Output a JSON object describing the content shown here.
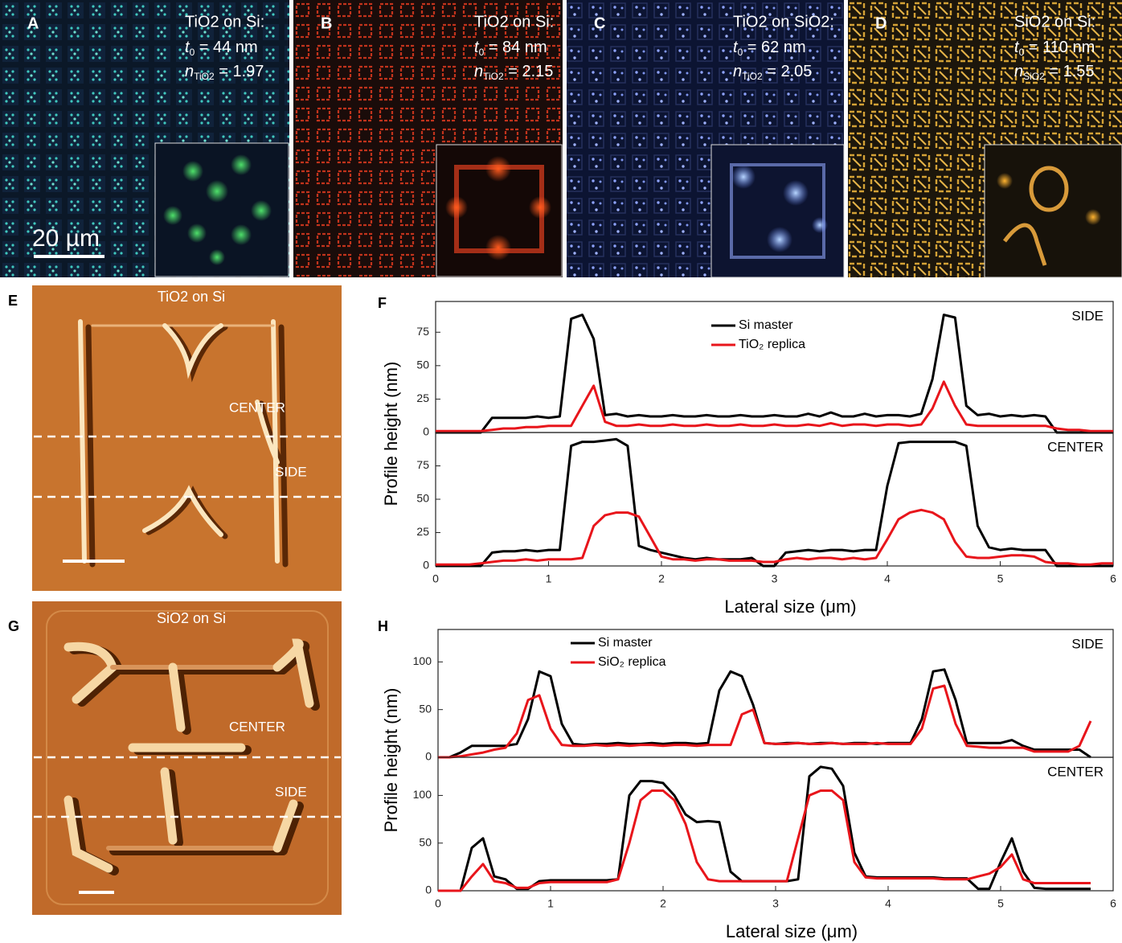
{
  "panels": [
    {
      "letter": "A",
      "title": "TiO2 on Si:",
      "lines": [
        {
          "sym": "t",
          "sub": "0",
          "text": " = 44 nm"
        },
        {
          "sym": "n",
          "sub": "TiO2",
          "text": " = 1.97"
        }
      ],
      "scale": "20 µm"
    },
    {
      "letter": "B",
      "title": "TiO2 on Si:",
      "lines": [
        {
          "sym": "t",
          "sub": "0",
          "text": " = 84 nm"
        },
        {
          "sym": "n",
          "sub": "TiO2",
          "text": " = 2.15"
        }
      ]
    },
    {
      "letter": "C",
      "title": "TiO2 on SiO2:",
      "lines": [
        {
          "sym": "t",
          "sub": "0",
          "text": " = 62 nm"
        },
        {
          "sym": "n",
          "sub": "TiO2",
          "text": " = 2.05"
        }
      ]
    },
    {
      "letter": "D",
      "title": "SiO2 on Si:",
      "lines": [
        {
          "sym": "t",
          "sub": "0",
          "text": " = 110 nm"
        },
        {
          "sym": "n",
          "sub": "SiO2",
          "text": " = 1.55"
        }
      ]
    }
  ],
  "afm": [
    {
      "letter": "E",
      "title": "TiO2 on Si",
      "center": "CENTER",
      "side": "SIDE"
    },
    {
      "letter": "G",
      "title": "SiO2 on Si",
      "center": "CENTER",
      "side": "SIDE"
    }
  ],
  "plot_letters": [
    "F",
    "H"
  ],
  "chart_data": [
    {
      "type": "line",
      "ylabel": "Profile height (nm)",
      "annotation": "SIDE",
      "legend": "upper center",
      "x": [
        0,
        0.1,
        0.2,
        0.3,
        0.4,
        0.5,
        0.6,
        0.7,
        0.8,
        0.9,
        1,
        1.1,
        1.2,
        1.3,
        1.4,
        1.5,
        1.6,
        1.7,
        1.8,
        1.9,
        2,
        2.1,
        2.2,
        2.3,
        2.4,
        2.5,
        2.6,
        2.7,
        2.8,
        2.9,
        3,
        3.1,
        3.2,
        3.3,
        3.4,
        3.5,
        3.6,
        3.7,
        3.8,
        3.9,
        4,
        4.1,
        4.2,
        4.3,
        4.4,
        4.5,
        4.6,
        4.7,
        4.8,
        4.9,
        5,
        5.1,
        5.2,
        5.3,
        5.4,
        5.5,
        5.6,
        5.7,
        5.8,
        5.9,
        6
      ],
      "xlim": [
        0,
        6
      ],
      "ylim": [
        0,
        98
      ],
      "yticks": [
        0,
        25,
        50,
        75
      ],
      "series": [
        {
          "name": "Si master",
          "color": "#000000",
          "values": [
            0,
            0,
            0,
            0,
            0,
            11,
            11,
            11,
            11,
            12,
            11,
            12,
            85,
            88,
            70,
            13,
            14,
            12,
            13,
            12,
            12,
            13,
            12,
            12,
            13,
            12,
            12,
            13,
            12,
            12,
            13,
            12,
            12,
            14,
            12,
            15,
            12,
            12,
            14,
            12,
            13,
            13,
            12,
            14,
            40,
            88,
            86,
            20,
            13,
            14,
            12,
            13,
            12,
            13,
            12,
            0,
            0,
            0,
            0,
            0,
            0
          ]
        },
        {
          "name": "TiO₂ replica",
          "color": "#e8151b",
          "values": [
            1,
            1,
            1,
            1,
            1,
            2,
            3,
            3,
            4,
            4,
            5,
            5,
            5,
            20,
            35,
            8,
            5,
            5,
            6,
            5,
            5,
            6,
            5,
            5,
            6,
            5,
            5,
            6,
            5,
            5,
            6,
            5,
            5,
            6,
            5,
            7,
            5,
            6,
            6,
            5,
            6,
            6,
            5,
            6,
            18,
            38,
            20,
            6,
            5,
            5,
            5,
            5,
            5,
            5,
            5,
            3,
            2,
            2,
            1,
            1,
            1
          ]
        }
      ]
    },
    {
      "type": "line",
      "xlabel": "Lateral size (μm)",
      "annotation": "CENTER",
      "x": [
        0,
        0.1,
        0.2,
        0.3,
        0.4,
        0.5,
        0.6,
        0.7,
        0.8,
        0.9,
        1,
        1.1,
        1.2,
        1.3,
        1.4,
        1.5,
        1.6,
        1.7,
        1.8,
        1.9,
        2,
        2.1,
        2.2,
        2.3,
        2.4,
        2.5,
        2.6,
        2.7,
        2.8,
        2.9,
        3,
        3.1,
        3.2,
        3.3,
        3.4,
        3.5,
        3.6,
        3.7,
        3.8,
        3.9,
        4,
        4.1,
        4.2,
        4.3,
        4.4,
        4.5,
        4.6,
        4.7,
        4.8,
        4.9,
        5,
        5.1,
        5.2,
        5.3,
        5.4,
        5.5,
        5.6,
        5.7,
        5.8,
        5.9,
        6
      ],
      "xlim": [
        0,
        6
      ],
      "xticks": [
        0,
        1,
        2,
        3,
        4,
        5,
        6
      ],
      "ylim": [
        0,
        100
      ],
      "yticks": [
        0,
        25,
        50,
        75
      ],
      "series": [
        {
          "color": "#000000",
          "values": [
            0,
            0,
            0,
            0,
            0,
            10,
            11,
            11,
            12,
            11,
            12,
            12,
            90,
            93,
            93,
            94,
            95,
            90,
            15,
            12,
            10,
            8,
            6,
            5,
            6,
            5,
            5,
            5,
            6,
            0,
            0,
            10,
            11,
            12,
            11,
            12,
            12,
            11,
            12,
            12,
            60,
            92,
            93,
            93,
            93,
            93,
            93,
            90,
            30,
            14,
            12,
            13,
            12,
            12,
            12,
            0,
            0,
            0,
            0,
            0,
            0
          ]
        },
        {
          "color": "#e8151b",
          "values": [
            1,
            1,
            1,
            1,
            2,
            3,
            4,
            4,
            5,
            4,
            5,
            5,
            5,
            6,
            30,
            38,
            40,
            40,
            37,
            22,
            7,
            5,
            5,
            4,
            5,
            5,
            4,
            4,
            4,
            3,
            3,
            5,
            6,
            5,
            6,
            6,
            5,
            6,
            5,
            6,
            20,
            35,
            40,
            42,
            40,
            35,
            18,
            7,
            6,
            6,
            7,
            8,
            8,
            7,
            3,
            2,
            2,
            1,
            1,
            2,
            2
          ]
        }
      ]
    },
    {
      "type": "line",
      "ylabel": "Profile height (nm)",
      "annotation": "SIDE",
      "legend": "upper left",
      "x": [
        0,
        0.1,
        0.2,
        0.3,
        0.4,
        0.5,
        0.6,
        0.7,
        0.8,
        0.9,
        1,
        1.1,
        1.2,
        1.3,
        1.4,
        1.5,
        1.6,
        1.7,
        1.8,
        1.9,
        2,
        2.1,
        2.2,
        2.3,
        2.4,
        2.5,
        2.6,
        2.7,
        2.8,
        2.9,
        3,
        3.1,
        3.2,
        3.3,
        3.4,
        3.5,
        3.6,
        3.7,
        3.8,
        3.9,
        4,
        4.1,
        4.2,
        4.3,
        4.4,
        4.5,
        4.6,
        4.7,
        4.8,
        4.9,
        5,
        5.1,
        5.2,
        5.3,
        5.4,
        5.5,
        5.6,
        5.7,
        5.8,
        5.9,
        6
      ],
      "xlim": [
        0,
        6
      ],
      "ylim": [
        0,
        134
      ],
      "yticks": [
        0,
        50,
        100
      ],
      "series": [
        {
          "name": "Si master",
          "color": "#000000",
          "values": [
            0,
            0,
            5,
            12,
            12,
            12,
            12,
            14,
            40,
            90,
            85,
            35,
            14,
            13,
            14,
            14,
            15,
            14,
            14,
            15,
            14,
            15,
            15,
            14,
            15,
            70,
            90,
            85,
            55,
            15,
            14,
            15,
            15,
            14,
            15,
            15,
            14,
            15,
            15,
            14,
            15,
            15,
            15,
            40,
            90,
            92,
            60,
            15,
            15,
            15,
            15,
            18,
            12,
            8,
            8,
            8,
            8,
            8,
            0,
            null,
            null
          ]
        },
        {
          "name": "SiO₂ replica",
          "color": "#e8151b",
          "values": [
            0,
            0,
            1,
            3,
            5,
            8,
            10,
            25,
            60,
            65,
            30,
            13,
            12,
            12,
            13,
            12,
            13,
            12,
            13,
            13,
            12,
            13,
            13,
            12,
            13,
            13,
            13,
            45,
            50,
            15,
            14,
            14,
            15,
            14,
            14,
            15,
            14,
            14,
            14,
            15,
            14,
            14,
            14,
            30,
            72,
            75,
            35,
            12,
            11,
            10,
            10,
            10,
            10,
            6,
            6,
            6,
            6,
            12,
            38,
            null,
            null
          ]
        }
      ]
    },
    {
      "type": "line",
      "xlabel": "Lateral size (μm)",
      "annotation": "CENTER",
      "x": [
        0,
        0.1,
        0.2,
        0.3,
        0.4,
        0.5,
        0.6,
        0.7,
        0.8,
        0.9,
        1,
        1.1,
        1.2,
        1.3,
        1.4,
        1.5,
        1.6,
        1.7,
        1.8,
        1.9,
        2,
        2.1,
        2.2,
        2.3,
        2.4,
        2.5,
        2.6,
        2.7,
        2.8,
        2.9,
        3,
        3.1,
        3.2,
        3.3,
        3.4,
        3.5,
        3.6,
        3.7,
        3.8,
        3.9,
        4,
        4.1,
        4.2,
        4.3,
        4.4,
        4.5,
        4.6,
        4.7,
        4.8,
        4.9,
        5,
        5.1,
        5.2,
        5.3,
        5.4,
        5.5,
        5.6,
        5.7,
        5.8,
        5.9,
        6
      ],
      "xlim": [
        0,
        6
      ],
      "xticks": [
        0,
        1,
        2,
        3,
        4,
        5,
        6
      ],
      "ylim": [
        0,
        140
      ],
      "yticks": [
        0,
        50,
        100
      ],
      "series": [
        {
          "color": "#000000",
          "values": [
            0,
            0,
            0,
            45,
            55,
            15,
            12,
            2,
            2,
            10,
            11,
            11,
            11,
            11,
            11,
            11,
            12,
            100,
            115,
            115,
            113,
            100,
            80,
            72,
            73,
            72,
            20,
            10,
            10,
            10,
            10,
            10,
            12,
            120,
            130,
            128,
            110,
            40,
            15,
            14,
            14,
            14,
            14,
            14,
            14,
            13,
            13,
            13,
            2,
            2,
            30,
            55,
            20,
            3,
            2,
            2,
            2,
            2,
            2,
            null,
            null
          ]
        },
        {
          "color": "#e8151b",
          "values": [
            0,
            0,
            0,
            15,
            28,
            10,
            8,
            3,
            3,
            8,
            9,
            9,
            9,
            9,
            9,
            9,
            12,
            50,
            95,
            105,
            105,
            95,
            70,
            30,
            12,
            10,
            10,
            10,
            10,
            10,
            10,
            10,
            55,
            100,
            105,
            105,
            95,
            30,
            14,
            13,
            13,
            13,
            13,
            13,
            13,
            12,
            12,
            12,
            15,
            18,
            25,
            38,
            12,
            8,
            8,
            8,
            8,
            8,
            8,
            null,
            null
          ]
        }
      ]
    }
  ]
}
